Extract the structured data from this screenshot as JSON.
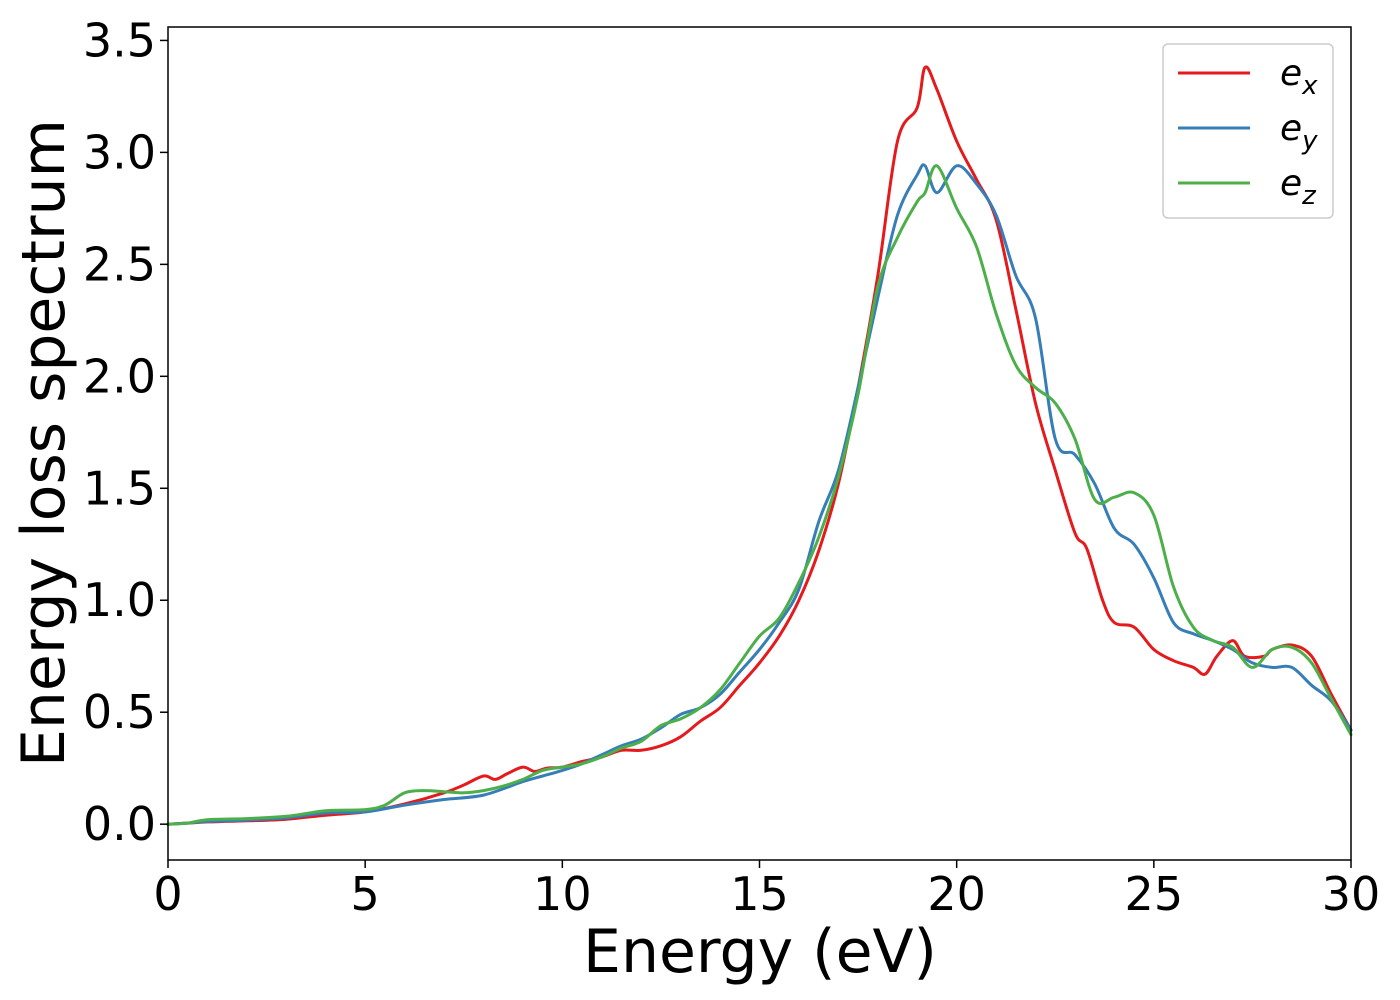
{
  "chart_data": {
    "type": "line",
    "xlabel": "Energy (eV)",
    "ylabel": "Energy loss spectrum",
    "xlim": [
      0,
      30
    ],
    "ylim": [
      -0.16,
      3.56
    ],
    "xticks": [
      0,
      5,
      10,
      15,
      20,
      25,
      30
    ],
    "xtick_labels": [
      "0",
      "5",
      "10",
      "15",
      "20",
      "25",
      "30"
    ],
    "yticks": [
      0.0,
      0.5,
      1.0,
      1.5,
      2.0,
      2.5,
      3.0,
      3.5
    ],
    "ytick_labels": [
      "0.0",
      "0.5",
      "1.0",
      "1.5",
      "2.0",
      "2.5",
      "3.0",
      "3.5"
    ],
    "grid": false,
    "legend_position": "top-right",
    "series": [
      {
        "name": "e",
        "subscript": "x",
        "color": "#e41a1c",
        "points": [
          [
            0,
            0.0
          ],
          [
            0.5,
            0.005
          ],
          [
            1,
            0.01
          ],
          [
            2,
            0.015
          ],
          [
            3,
            0.022
          ],
          [
            4,
            0.04
          ],
          [
            5,
            0.055
          ],
          [
            6,
            0.09
          ],
          [
            7,
            0.14
          ],
          [
            7.5,
            0.175
          ],
          [
            8,
            0.215
          ],
          [
            8.3,
            0.2
          ],
          [
            8.6,
            0.225
          ],
          [
            9,
            0.255
          ],
          [
            9.3,
            0.235
          ],
          [
            9.6,
            0.25
          ],
          [
            10,
            0.255
          ],
          [
            10.5,
            0.28
          ],
          [
            11,
            0.3
          ],
          [
            11.5,
            0.33
          ],
          [
            12,
            0.33
          ],
          [
            12.5,
            0.35
          ],
          [
            13,
            0.39
          ],
          [
            13.5,
            0.46
          ],
          [
            14,
            0.52
          ],
          [
            14.5,
            0.62
          ],
          [
            15,
            0.72
          ],
          [
            15.5,
            0.84
          ],
          [
            16,
            1.0
          ],
          [
            16.5,
            1.22
          ],
          [
            17,
            1.52
          ],
          [
            17.5,
            1.95
          ],
          [
            18,
            2.45
          ],
          [
            18.5,
            3.05
          ],
          [
            19,
            3.2
          ],
          [
            19.2,
            3.38
          ],
          [
            19.5,
            3.28
          ],
          [
            20,
            3.05
          ],
          [
            20.5,
            2.88
          ],
          [
            21,
            2.7
          ],
          [
            21.5,
            2.3
          ],
          [
            22,
            1.88
          ],
          [
            22.5,
            1.58
          ],
          [
            23,
            1.3
          ],
          [
            23.3,
            1.23
          ],
          [
            23.7,
            1.0
          ],
          [
            24,
            0.9
          ],
          [
            24.5,
            0.88
          ],
          [
            25,
            0.78
          ],
          [
            25.5,
            0.73
          ],
          [
            26,
            0.7
          ],
          [
            26.3,
            0.67
          ],
          [
            26.6,
            0.75
          ],
          [
            27,
            0.82
          ],
          [
            27.3,
            0.75
          ],
          [
            27.8,
            0.75
          ],
          [
            28,
            0.78
          ],
          [
            28.5,
            0.8
          ],
          [
            29,
            0.75
          ],
          [
            29.5,
            0.58
          ],
          [
            30,
            0.42
          ]
        ]
      },
      {
        "name": "e",
        "subscript": "y",
        "color": "#377eb8",
        "points": [
          [
            0,
            0.0
          ],
          [
            0.5,
            0.005
          ],
          [
            1,
            0.012
          ],
          [
            2,
            0.018
          ],
          [
            3,
            0.028
          ],
          [
            4,
            0.05
          ],
          [
            5,
            0.055
          ],
          [
            6,
            0.085
          ],
          [
            7,
            0.11
          ],
          [
            8,
            0.13
          ],
          [
            9,
            0.19
          ],
          [
            9.5,
            0.215
          ],
          [
            10,
            0.24
          ],
          [
            10.5,
            0.27
          ],
          [
            11,
            0.31
          ],
          [
            11.5,
            0.35
          ],
          [
            12,
            0.38
          ],
          [
            12.5,
            0.43
          ],
          [
            13,
            0.49
          ],
          [
            13.5,
            0.52
          ],
          [
            14,
            0.58
          ],
          [
            14.5,
            0.68
          ],
          [
            15,
            0.78
          ],
          [
            15.5,
            0.9
          ],
          [
            16,
            1.05
          ],
          [
            16.5,
            1.35
          ],
          [
            17,
            1.58
          ],
          [
            17.5,
            1.95
          ],
          [
            18,
            2.35
          ],
          [
            18.5,
            2.72
          ],
          [
            19,
            2.9
          ],
          [
            19.2,
            2.94
          ],
          [
            19.5,
            2.82
          ],
          [
            20,
            2.94
          ],
          [
            20.5,
            2.86
          ],
          [
            21,
            2.72
          ],
          [
            21.5,
            2.45
          ],
          [
            22,
            2.26
          ],
          [
            22.5,
            1.72
          ],
          [
            23,
            1.65
          ],
          [
            23.5,
            1.52
          ],
          [
            24,
            1.32
          ],
          [
            24.5,
            1.25
          ],
          [
            25,
            1.1
          ],
          [
            25.5,
            0.9
          ],
          [
            26,
            0.85
          ],
          [
            26.5,
            0.82
          ],
          [
            27,
            0.78
          ],
          [
            27.5,
            0.72
          ],
          [
            28,
            0.7
          ],
          [
            28.5,
            0.7
          ],
          [
            29,
            0.62
          ],
          [
            29.5,
            0.55
          ],
          [
            30,
            0.42
          ]
        ]
      },
      {
        "name": "e",
        "subscript": "z",
        "color": "#4daf4a",
        "points": [
          [
            0,
            0.0
          ],
          [
            0.5,
            0.005
          ],
          [
            1,
            0.02
          ],
          [
            2,
            0.025
          ],
          [
            3,
            0.035
          ],
          [
            4,
            0.06
          ],
          [
            5,
            0.065
          ],
          [
            5.5,
            0.085
          ],
          [
            6,
            0.14
          ],
          [
            6.5,
            0.15
          ],
          [
            7,
            0.145
          ],
          [
            7.5,
            0.14
          ],
          [
            8,
            0.15
          ],
          [
            8.5,
            0.17
          ],
          [
            9,
            0.2
          ],
          [
            9.5,
            0.24
          ],
          [
            10,
            0.255
          ],
          [
            10.5,
            0.27
          ],
          [
            11,
            0.3
          ],
          [
            11.5,
            0.34
          ],
          [
            12,
            0.37
          ],
          [
            12.5,
            0.44
          ],
          [
            13,
            0.47
          ],
          [
            13.5,
            0.52
          ],
          [
            14,
            0.6
          ],
          [
            14.5,
            0.72
          ],
          [
            15,
            0.84
          ],
          [
            15.5,
            0.92
          ],
          [
            16,
            1.08
          ],
          [
            16.5,
            1.28
          ],
          [
            17,
            1.55
          ],
          [
            17.5,
            1.92
          ],
          [
            18,
            2.4
          ],
          [
            18.5,
            2.62
          ],
          [
            19,
            2.78
          ],
          [
            19.2,
            2.82
          ],
          [
            19.5,
            2.94
          ],
          [
            20,
            2.75
          ],
          [
            20.5,
            2.58
          ],
          [
            21,
            2.28
          ],
          [
            21.5,
            2.05
          ],
          [
            22,
            1.95
          ],
          [
            22.5,
            1.88
          ],
          [
            23,
            1.72
          ],
          [
            23.5,
            1.45
          ],
          [
            24,
            1.46
          ],
          [
            24.5,
            1.48
          ],
          [
            25,
            1.38
          ],
          [
            25.5,
            1.06
          ],
          [
            26,
            0.88
          ],
          [
            26.5,
            0.82
          ],
          [
            27,
            0.79
          ],
          [
            27.5,
            0.7
          ],
          [
            28,
            0.78
          ],
          [
            28.5,
            0.79
          ],
          [
            29,
            0.72
          ],
          [
            29.5,
            0.56
          ],
          [
            30,
            0.4
          ]
        ]
      }
    ]
  }
}
